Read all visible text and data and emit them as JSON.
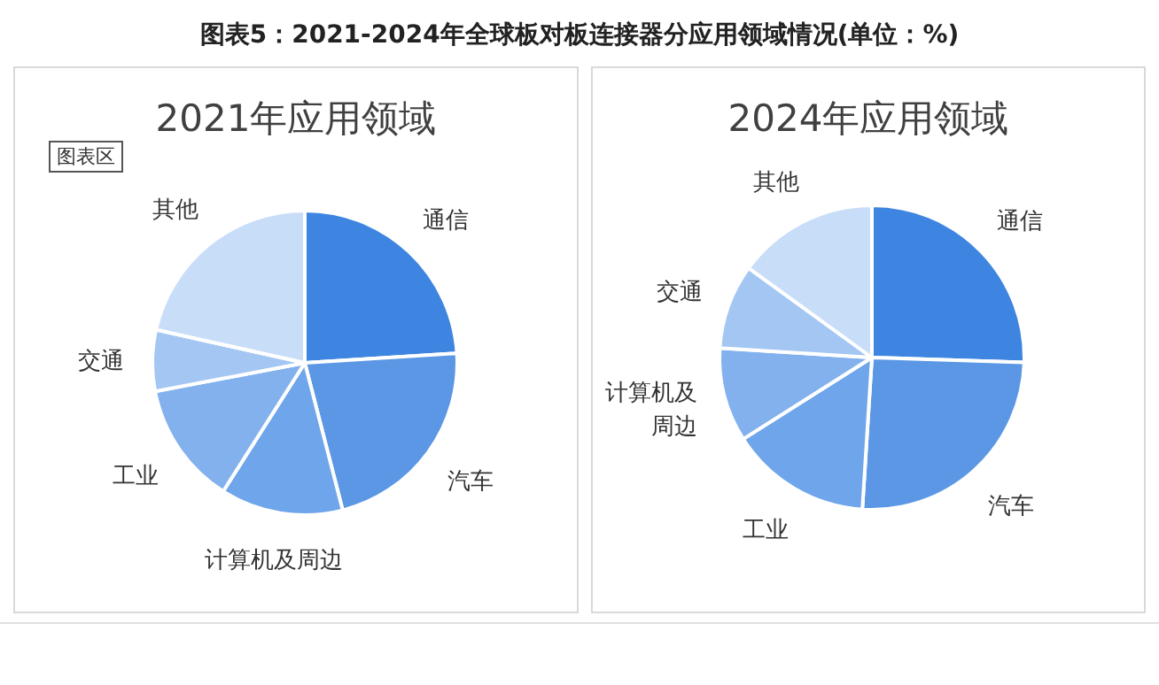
{
  "chart_data": [
    {
      "type": "pie",
      "title": "图表5：2021-2024年全球板对板连接器分应用领域情况(单位：%)",
      "subtitle": "2021年应用领域",
      "annotations": [
        "图表区"
      ],
      "categories": [
        "通信",
        "汽车",
        "计算机及周边",
        "工业",
        "交通",
        "其他"
      ],
      "values": [
        24,
        22,
        13,
        13,
        6.5,
        21.5
      ],
      "colors": [
        "#3d85e0",
        "#5b97e4",
        "#6fa5ea",
        "#82b1ee",
        "#a3c6f3",
        "#c8ddf8"
      ]
    },
    {
      "type": "pie",
      "subtitle": "2024年应用领域",
      "categories": [
        "通信",
        "汽车",
        "工业",
        "计算机及周边",
        "交通",
        "其他"
      ],
      "values": [
        25.5,
        25.5,
        15,
        10,
        9,
        15
      ],
      "colors": [
        "#3d85e0",
        "#5b97e4",
        "#6fa5ea",
        "#82b1ee",
        "#a3c6f3",
        "#c8ddf8"
      ]
    }
  ]
}
